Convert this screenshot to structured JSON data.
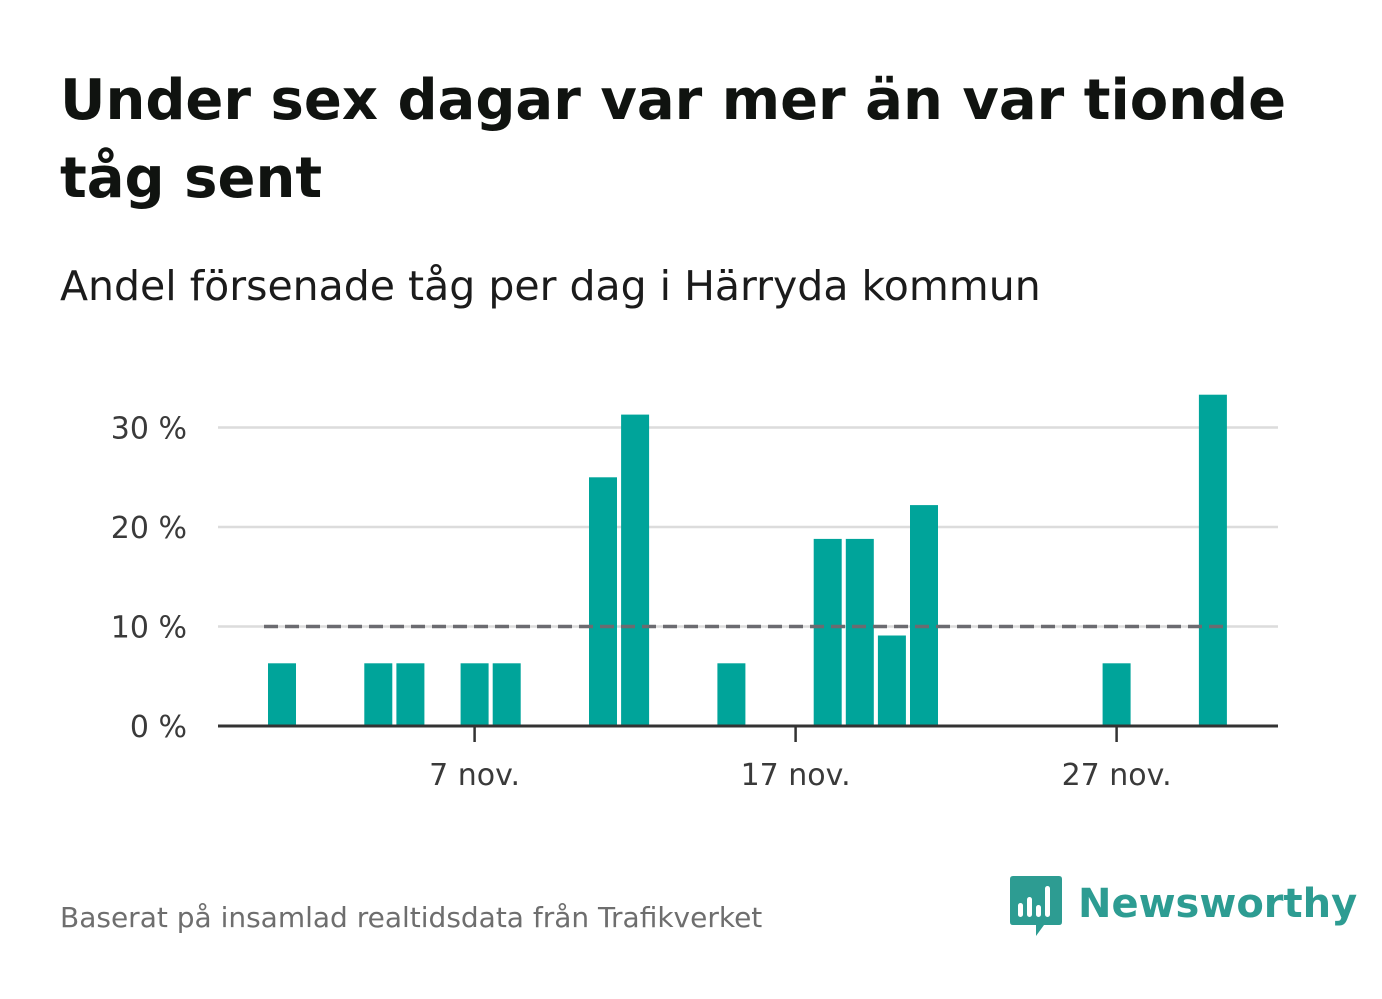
{
  "title": "Under sex dagar var mer än var tionde tåg sent",
  "subtitle": "Andel försenade tåg per dag i Härryda kommun",
  "source": "Baserat på insamlad realtidsdata från Trafikverket",
  "brand": {
    "name": "Newsworthy",
    "icon": "newsworthy-logo-icon",
    "color": "#2d9c92"
  },
  "colors": {
    "bar": "#00a49a",
    "reference_line": "#6b6b70",
    "grid": "#dcdcdc",
    "axis": "#333333"
  },
  "chart_data": {
    "type": "bar",
    "x_unit": "day (november)",
    "x": [
      1,
      2,
      3,
      4,
      5,
      6,
      7,
      8,
      9,
      10,
      11,
      12,
      13,
      14,
      15,
      16,
      17,
      18,
      19,
      20,
      21,
      22,
      23,
      24,
      25,
      26,
      27,
      28,
      29,
      30
    ],
    "values": [
      6.3,
      0,
      0,
      6.3,
      6.3,
      0,
      6.3,
      6.3,
      0,
      0,
      25,
      31.3,
      0,
      0,
      6.3,
      0,
      0,
      18.8,
      18.8,
      9.1,
      22.2,
      0,
      0,
      0,
      0,
      0,
      6.3,
      0,
      0,
      33.3
    ],
    "ylim": [
      0,
      35
    ],
    "y_ticks": [
      0,
      10,
      20,
      30
    ],
    "y_tick_labels": [
      "0 %",
      "10 %",
      "20 %",
      "30 %"
    ],
    "x_ticks": [
      7,
      17,
      27
    ],
    "x_tick_labels": [
      "7 nov.",
      "17 nov.",
      "27 nov."
    ],
    "reference_line": {
      "value": 10,
      "style": "dashed"
    },
    "grid": true,
    "legend": false
  }
}
